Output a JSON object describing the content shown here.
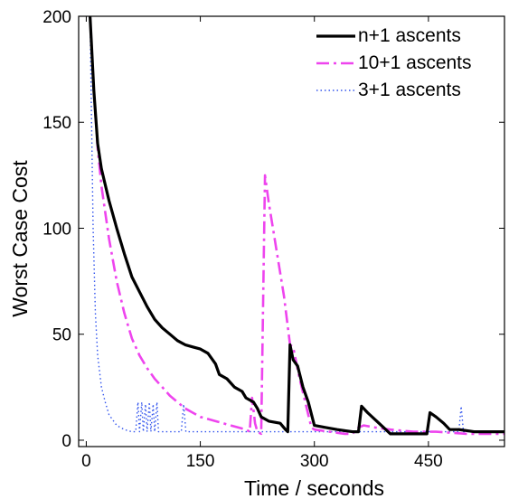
{
  "chart_data": {
    "type": "line",
    "title": "",
    "xlabel": "Time / seconds",
    "ylabel": "Worst Case Cost",
    "xlim": [
      -10,
      550
    ],
    "ylim": [
      -3,
      200
    ],
    "x_ticks": [
      0,
      150,
      300,
      450
    ],
    "y_ticks": [
      0,
      50,
      100,
      150,
      200
    ],
    "x_tick_labels": [
      "0",
      "150",
      "300",
      "450"
    ],
    "y_tick_labels": [
      "0",
      "50",
      "100",
      "150",
      "200"
    ],
    "grid": false,
    "legend_position": "top-right",
    "series": [
      {
        "name": "n+1 ascents",
        "color": "#000000",
        "style": "solid",
        "points": [
          [
            5,
            200
          ],
          [
            10,
            165
          ],
          [
            15,
            140
          ],
          [
            20,
            128
          ],
          [
            30,
            113
          ],
          [
            40,
            100
          ],
          [
            50,
            88
          ],
          [
            60,
            77
          ],
          [
            70,
            70
          ],
          [
            80,
            63
          ],
          [
            90,
            57
          ],
          [
            100,
            53
          ],
          [
            110,
            50
          ],
          [
            120,
            47
          ],
          [
            130,
            45
          ],
          [
            140,
            44
          ],
          [
            150,
            43
          ],
          [
            160,
            41
          ],
          [
            170,
            36
          ],
          [
            175,
            31
          ],
          [
            185,
            29
          ],
          [
            195,
            25
          ],
          [
            205,
            23
          ],
          [
            210,
            20
          ],
          [
            220,
            18
          ],
          [
            225,
            15
          ],
          [
            230,
            11
          ],
          [
            240,
            9
          ],
          [
            255,
            8
          ],
          [
            262,
            5
          ],
          [
            265,
            4
          ],
          [
            268,
            45
          ],
          [
            272,
            38
          ],
          [
            278,
            35
          ],
          [
            285,
            25
          ],
          [
            292,
            18
          ],
          [
            300,
            7
          ],
          [
            315,
            6
          ],
          [
            330,
            5
          ],
          [
            350,
            4
          ],
          [
            358,
            4
          ],
          [
            362,
            16
          ],
          [
            370,
            13
          ],
          [
            385,
            8
          ],
          [
            400,
            3
          ],
          [
            420,
            3
          ],
          [
            440,
            3
          ],
          [
            448,
            3
          ],
          [
            452,
            13
          ],
          [
            460,
            11
          ],
          [
            470,
            8
          ],
          [
            478,
            5
          ],
          [
            490,
            5
          ],
          [
            510,
            4
          ],
          [
            530,
            4
          ],
          [
            550,
            4
          ]
        ]
      },
      {
        "name": "10+1 ascents",
        "color": "#ee44ee",
        "style": "dashdot",
        "points": [
          [
            5,
            200
          ],
          [
            10,
            165
          ],
          [
            15,
            138
          ],
          [
            20,
            120
          ],
          [
            30,
            95
          ],
          [
            40,
            75
          ],
          [
            50,
            60
          ],
          [
            60,
            48
          ],
          [
            70,
            40
          ],
          [
            80,
            34
          ],
          [
            90,
            29
          ],
          [
            100,
            25
          ],
          [
            110,
            21
          ],
          [
            120,
            18
          ],
          [
            130,
            15
          ],
          [
            140,
            13
          ],
          [
            150,
            11
          ],
          [
            160,
            10
          ],
          [
            170,
            9
          ],
          [
            180,
            8
          ],
          [
            190,
            7
          ],
          [
            200,
            6
          ],
          [
            210,
            5
          ],
          [
            215,
            4
          ],
          [
            218,
            20
          ],
          [
            222,
            8
          ],
          [
            225,
            4
          ],
          [
            230,
            3
          ],
          [
            235,
            125
          ],
          [
            240,
            112
          ],
          [
            250,
            90
          ],
          [
            260,
            68
          ],
          [
            268,
            45
          ],
          [
            272,
            44
          ],
          [
            280,
            30
          ],
          [
            290,
            15
          ],
          [
            296,
            6
          ],
          [
            300,
            5
          ],
          [
            320,
            4
          ],
          [
            340,
            3
          ],
          [
            350,
            3
          ],
          [
            358,
            6
          ],
          [
            365,
            7
          ],
          [
            380,
            6
          ],
          [
            400,
            5
          ],
          [
            430,
            4
          ],
          [
            460,
            4
          ],
          [
            500,
            3
          ],
          [
            530,
            3
          ],
          [
            550,
            3
          ]
        ]
      },
      {
        "name": "3+1 ascents",
        "color": "#3355ee",
        "style": "dotted",
        "points": [
          [
            5,
            200
          ],
          [
            7,
            150
          ],
          [
            9,
            100
          ],
          [
            12,
            60
          ],
          [
            15,
            40
          ],
          [
            20,
            25
          ],
          [
            25,
            18
          ],
          [
            30,
            12
          ],
          [
            40,
            7
          ],
          [
            50,
            5
          ],
          [
            60,
            4
          ],
          [
            65,
            4
          ],
          [
            68,
            18
          ],
          [
            70,
            4
          ],
          [
            73,
            18
          ],
          [
            75,
            4
          ],
          [
            78,
            17
          ],
          [
            80,
            4
          ],
          [
            83,
            18
          ],
          [
            85,
            4
          ],
          [
            88,
            17
          ],
          [
            90,
            4
          ],
          [
            93,
            18
          ],
          [
            95,
            4
          ],
          [
            100,
            4
          ],
          [
            125,
            4
          ],
          [
            128,
            17
          ],
          [
            131,
            4
          ],
          [
            140,
            4
          ],
          [
            200,
            4
          ],
          [
            280,
            4
          ],
          [
            400,
            4
          ],
          [
            490,
            4
          ],
          [
            493,
            16
          ],
          [
            496,
            4
          ],
          [
            520,
            4
          ],
          [
            550,
            4
          ]
        ]
      }
    ]
  }
}
